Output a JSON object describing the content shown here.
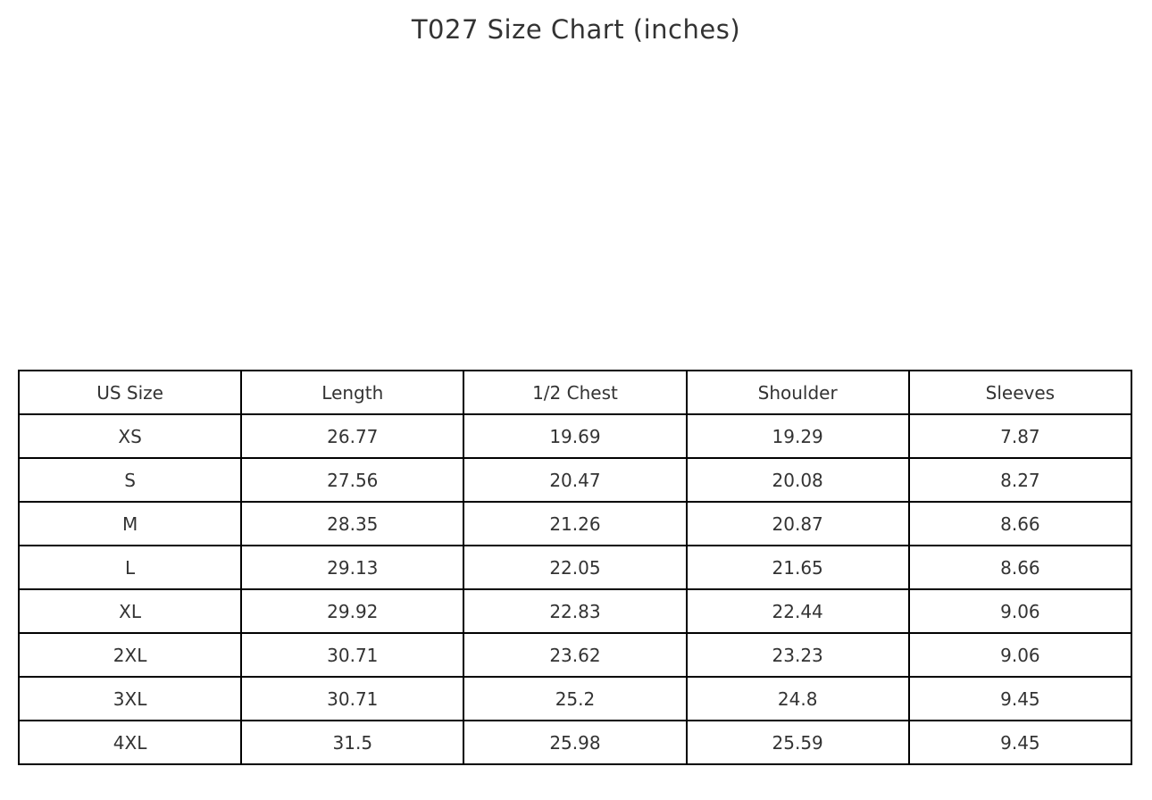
{
  "title": "T027 Size Chart (inches)",
  "colors": {
    "background": "#ffffff",
    "table_border": "#000000",
    "text": "#333333"
  },
  "chart_data": {
    "type": "table",
    "title": "T027 Size Chart (inches)",
    "columns": [
      "US Size",
      "Length",
      "1/2 Chest",
      "Shoulder",
      "Sleeves"
    ],
    "rows": [
      [
        "XS",
        "26.77",
        "19.69",
        "19.29",
        "7.87"
      ],
      [
        "S",
        "27.56",
        "20.47",
        "20.08",
        "8.27"
      ],
      [
        "M",
        "28.35",
        "21.26",
        "20.87",
        "8.66"
      ],
      [
        "L",
        "29.13",
        "22.05",
        "21.65",
        "8.66"
      ],
      [
        "XL",
        "29.92",
        "22.83",
        "22.44",
        "9.06"
      ],
      [
        "2XL",
        "30.71",
        "23.62",
        "23.23",
        "9.06"
      ],
      [
        "3XL",
        "30.71",
        "25.2",
        "24.8",
        "9.45"
      ],
      [
        "4XL",
        "31.5",
        "25.98",
        "25.59",
        "9.45"
      ]
    ]
  }
}
